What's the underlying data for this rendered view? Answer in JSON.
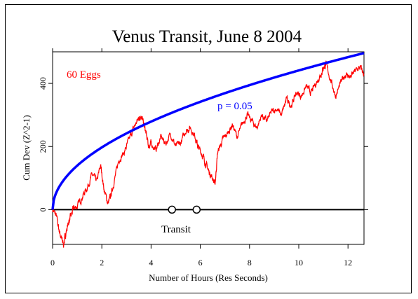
{
  "chart_data": {
    "type": "line",
    "title": "Venus Transit, June 8 2004",
    "xlabel": "Number of Hours (Res Seconds)",
    "ylabel": "Cum Dev (Z^2-1)",
    "xlim": [
      0,
      12.65
    ],
    "ylim": [
      -110,
      500
    ],
    "x_ticks": [
      0,
      2,
      4,
      6,
      8,
      10,
      12
    ],
    "y_ticks": [
      0,
      200,
      400
    ],
    "grid": false,
    "annotations": {
      "eggs": "60 Eggs",
      "probability": "p = 0.05",
      "transit": "Transit"
    },
    "transit_markers": [
      4.85,
      5.85
    ],
    "series": [
      {
        "name": "p = 0.05",
        "color": "#0000ff",
        "kind": "envelope",
        "x": [
          0,
          0.1,
          0.25,
          0.5,
          1,
          1.5,
          2,
          3,
          4,
          5,
          6,
          7,
          8,
          9,
          10,
          11,
          12,
          12.65
        ],
        "values": [
          0,
          44,
          70,
          99,
          140,
          171,
          197,
          242,
          279,
          312,
          342,
          369,
          395,
          419,
          441,
          463,
          483,
          496
        ]
      },
      {
        "name": "",
        "color": "#ff0000",
        "kind": "cumulative",
        "x": [
          0,
          0.15,
          0.25,
          0.35,
          0.45,
          0.55,
          0.65,
          0.75,
          0.85,
          1.0,
          1.2,
          1.4,
          1.6,
          1.8,
          1.95,
          2.1,
          2.25,
          2.35,
          2.5,
          2.7,
          2.9,
          3.1,
          3.3,
          3.5,
          3.6,
          3.7,
          3.8,
          3.9,
          4.0,
          4.2,
          4.4,
          4.6,
          4.8,
          5.0,
          5.2,
          5.4,
          5.6,
          5.8,
          5.9,
          6.05,
          6.2,
          6.35,
          6.5,
          6.6,
          6.7,
          6.9,
          7.1,
          7.3,
          7.5,
          7.7,
          7.9,
          8.1,
          8.3,
          8.5,
          8.7,
          8.9,
          9.1,
          9.3,
          9.5,
          9.7,
          9.9,
          10.1,
          10.3,
          10.5,
          10.7,
          10.9,
          11.0,
          11.1,
          11.3,
          11.5,
          11.7,
          11.9,
          12.1,
          12.3,
          12.5,
          12.65
        ],
        "values": [
          0,
          -20,
          -60,
          -90,
          -110,
          -70,
          -40,
          -20,
          5,
          10,
          40,
          70,
          110,
          90,
          140,
          60,
          20,
          40,
          90,
          160,
          180,
          220,
          260,
          290,
          300,
          270,
          240,
          200,
          210,
          190,
          230,
          210,
          240,
          200,
          210,
          250,
          260,
          230,
          200,
          180,
          150,
          120,
          100,
          80,
          180,
          220,
          240,
          270,
          230,
          270,
          300,
          280,
          260,
          300,
          280,
          310,
          320,
          300,
          350,
          330,
          370,
          360,
          390,
          370,
          400,
          430,
          450,
          460,
          410,
          360,
          400,
          430,
          420,
          440,
          450,
          430
        ]
      }
    ]
  }
}
